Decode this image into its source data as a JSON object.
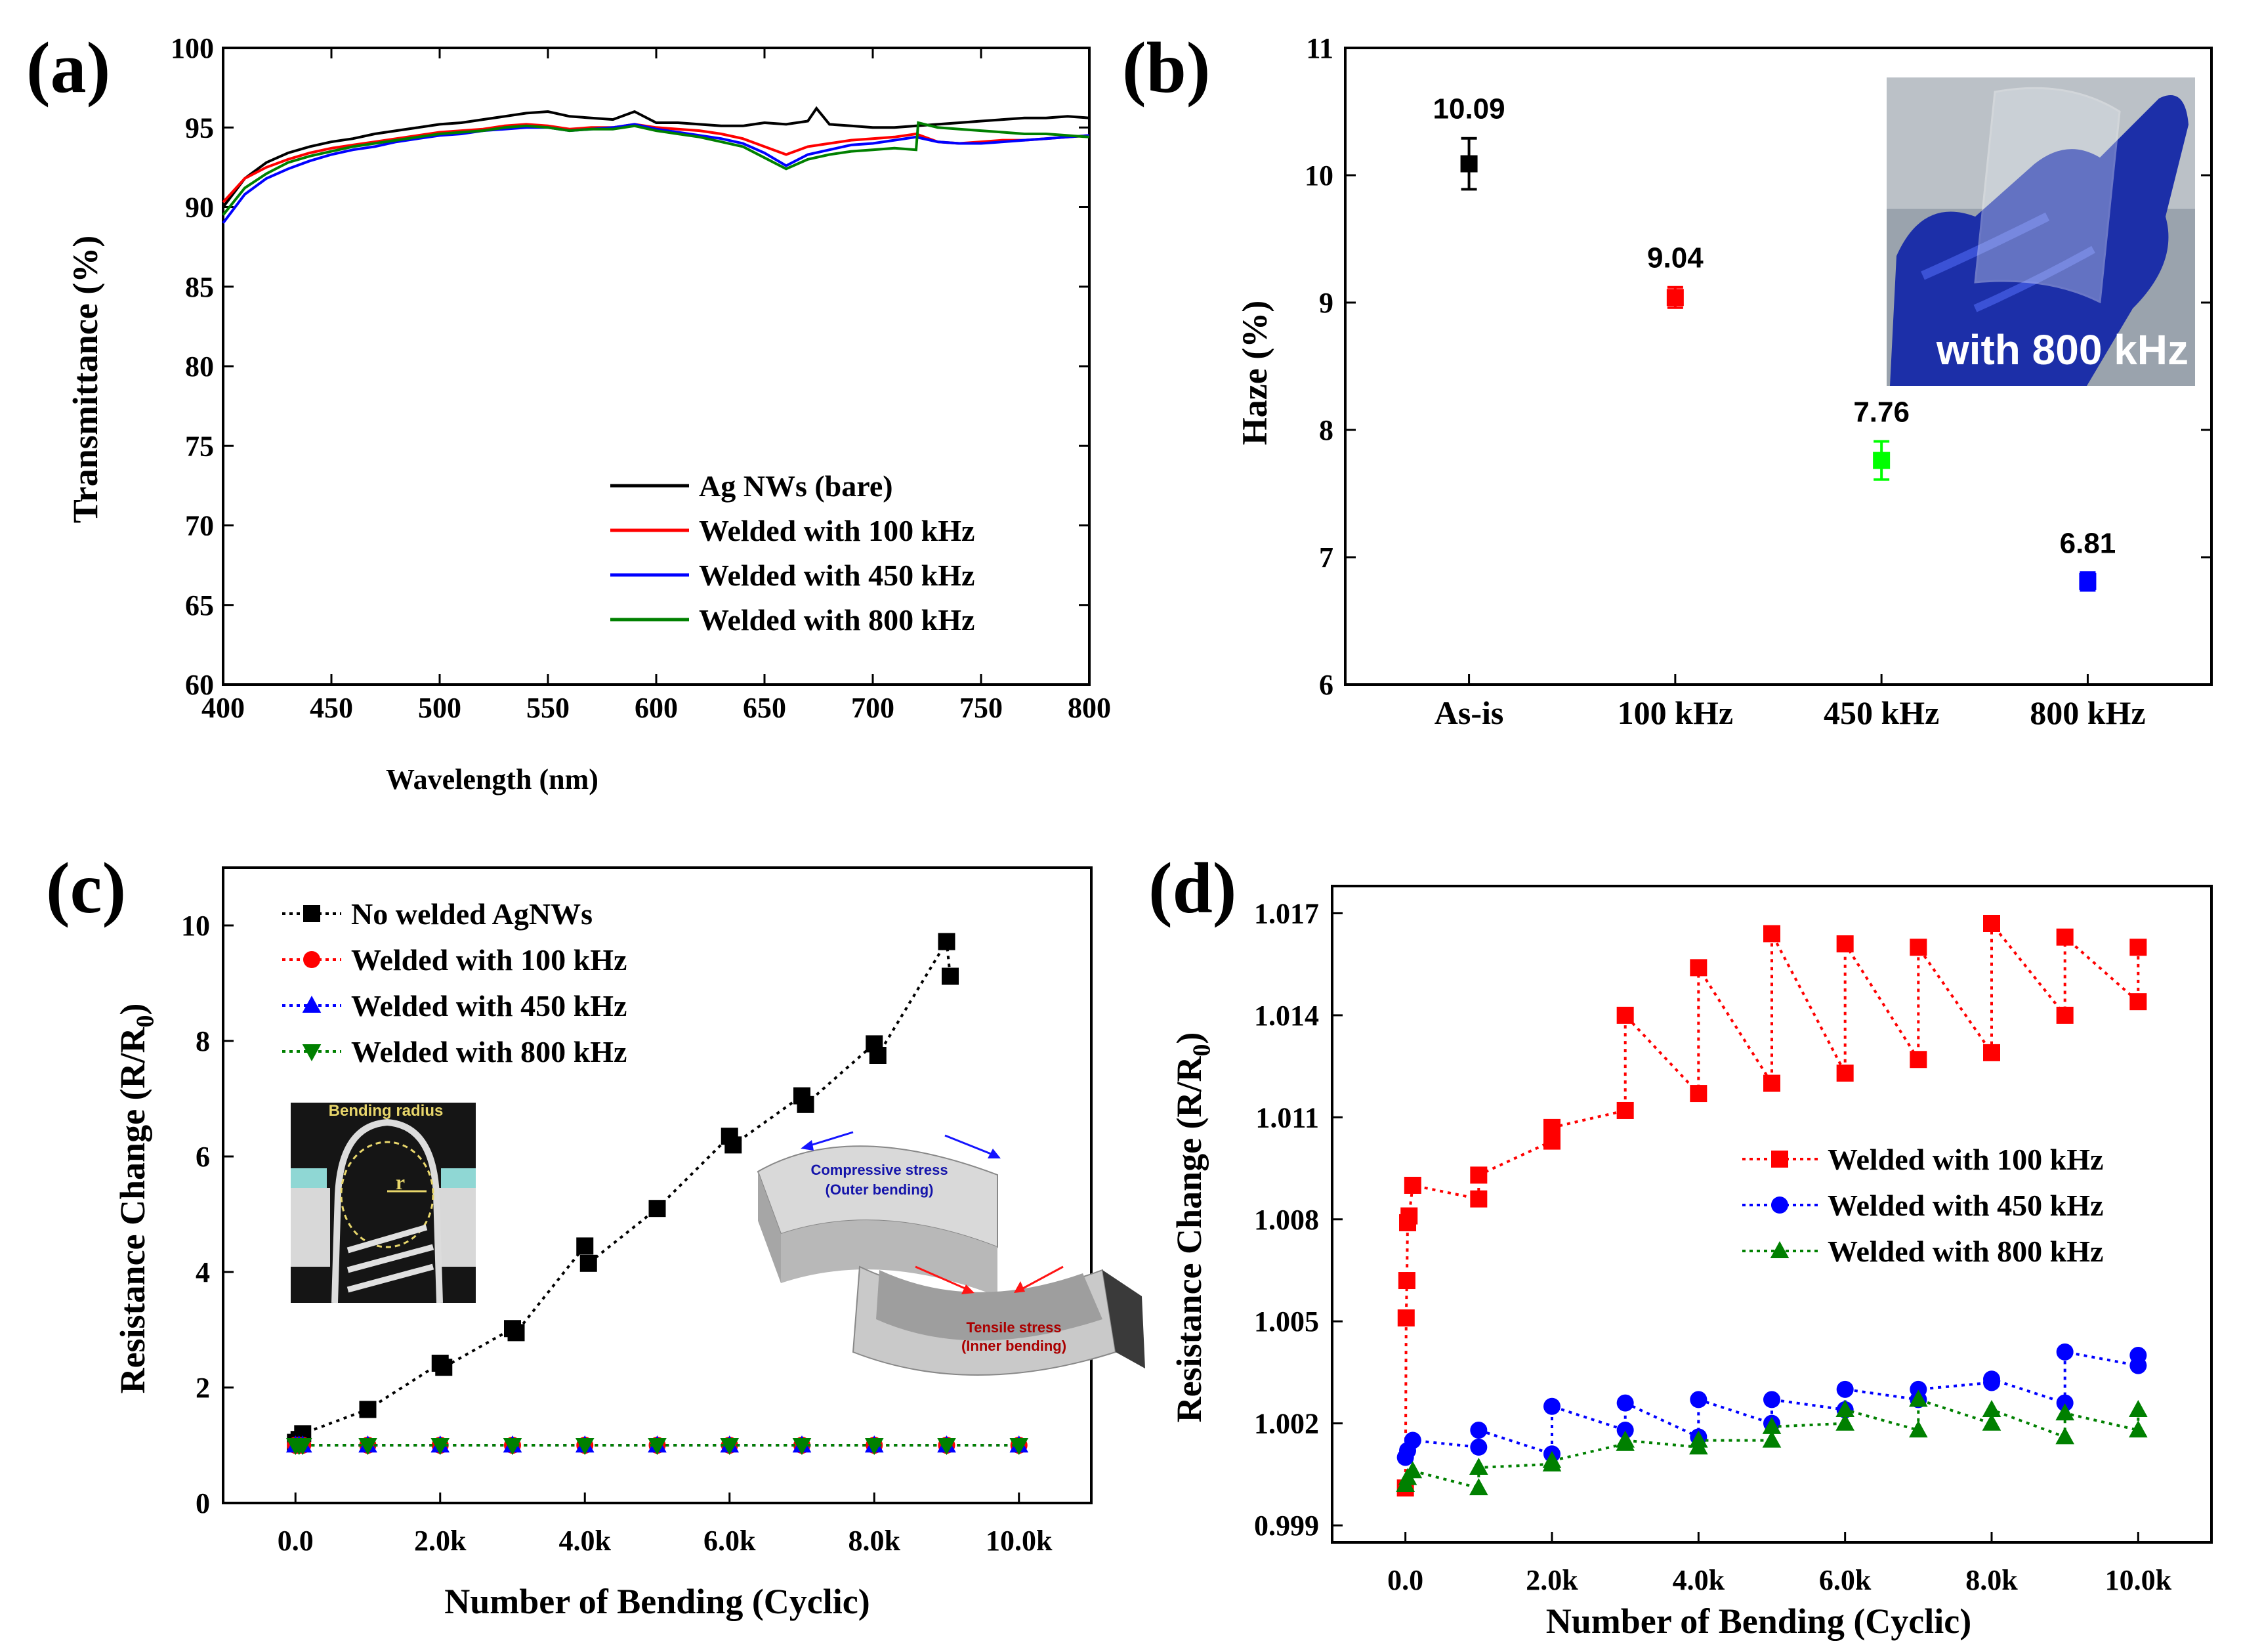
{
  "chart_data": [
    {
      "panel_label": "(a)",
      "type": "line",
      "xlabel": "Wavelength (nm)",
      "ylabel": "Transmittance (%)",
      "xlim": [
        400,
        800
      ],
      "ylim": [
        60,
        100
      ],
      "xticks": [
        400,
        450,
        500,
        550,
        600,
        650,
        700,
        750,
        800
      ],
      "yticks": [
        60,
        65,
        70,
        75,
        80,
        85,
        90,
        95,
        100
      ],
      "legend_position": "bottom-right",
      "series": [
        {
          "name": "Ag NWs (bare)",
          "color": "#000000",
          "x": [
            400,
            410,
            420,
            430,
            440,
            450,
            460,
            470,
            480,
            490,
            500,
            510,
            520,
            530,
            540,
            550,
            560,
            570,
            580,
            590,
            600,
            610,
            620,
            630,
            640,
            650,
            660,
            670,
            674,
            680,
            690,
            700,
            710,
            720,
            730,
            740,
            750,
            760,
            770,
            780,
            790,
            800
          ],
          "y": [
            90.0,
            91.8,
            92.8,
            93.4,
            93.8,
            94.1,
            94.3,
            94.6,
            94.8,
            95.0,
            95.2,
            95.3,
            95.5,
            95.7,
            95.9,
            96.0,
            95.7,
            95.6,
            95.5,
            96.0,
            95.3,
            95.3,
            95.2,
            95.1,
            95.1,
            95.3,
            95.2,
            95.4,
            96.2,
            95.2,
            95.1,
            95.0,
            95.0,
            95.1,
            95.2,
            95.3,
            95.4,
            95.5,
            95.6,
            95.6,
            95.7,
            95.6
          ]
        },
        {
          "name": "Welded with 100 kHz",
          "color": "#ff0000",
          "x": [
            400,
            410,
            420,
            430,
            440,
            450,
            460,
            470,
            480,
            490,
            500,
            510,
            520,
            530,
            540,
            550,
            560,
            570,
            580,
            590,
            600,
            610,
            620,
            630,
            640,
            650,
            660,
            670,
            680,
            690,
            700,
            710,
            720,
            730,
            740,
            750,
            760,
            770,
            780,
            790,
            800
          ],
          "y": [
            90.3,
            91.8,
            92.5,
            93.0,
            93.4,
            93.7,
            93.9,
            94.1,
            94.3,
            94.5,
            94.7,
            94.8,
            94.9,
            95.1,
            95.2,
            95.1,
            94.9,
            95.0,
            95.0,
            95.2,
            95.0,
            94.9,
            94.8,
            94.6,
            94.3,
            93.8,
            93.3,
            93.8,
            94.0,
            94.2,
            94.3,
            94.4,
            94.6,
            94.1,
            94.0,
            94.1,
            94.2,
            94.2,
            94.3,
            94.4,
            94.5
          ]
        },
        {
          "name": "Welded with 450 kHz",
          "color": "#0000ff",
          "x": [
            400,
            410,
            420,
            430,
            440,
            450,
            460,
            470,
            480,
            490,
            500,
            510,
            520,
            530,
            540,
            550,
            560,
            570,
            580,
            590,
            600,
            610,
            620,
            630,
            640,
            650,
            660,
            670,
            680,
            690,
            700,
            710,
            720,
            730,
            740,
            750,
            760,
            770,
            780,
            790,
            800
          ],
          "y": [
            89.0,
            90.8,
            91.8,
            92.4,
            92.9,
            93.3,
            93.6,
            93.8,
            94.1,
            94.3,
            94.5,
            94.6,
            94.8,
            94.9,
            95.0,
            95.0,
            94.8,
            94.9,
            95.0,
            95.2,
            94.9,
            94.7,
            94.5,
            94.3,
            94.0,
            93.4,
            92.6,
            93.3,
            93.6,
            93.9,
            94.0,
            94.2,
            94.4,
            94.1,
            94.0,
            94.0,
            94.1,
            94.2,
            94.3,
            94.4,
            94.5
          ]
        },
        {
          "name": "Welded with 800 kHz",
          "color": "#008000",
          "x": [
            400,
            410,
            420,
            430,
            440,
            450,
            460,
            470,
            480,
            490,
            500,
            510,
            520,
            530,
            540,
            550,
            560,
            570,
            580,
            590,
            600,
            610,
            620,
            630,
            640,
            650,
            660,
            670,
            680,
            690,
            700,
            710,
            720,
            721,
            730,
            740,
            750,
            760,
            770,
            780,
            790,
            800
          ],
          "y": [
            89.5,
            91.2,
            92.1,
            92.8,
            93.2,
            93.5,
            93.8,
            94.0,
            94.2,
            94.4,
            94.6,
            94.7,
            94.8,
            95.0,
            95.1,
            95.0,
            94.8,
            94.9,
            94.9,
            95.1,
            94.8,
            94.6,
            94.4,
            94.1,
            93.8,
            93.1,
            92.4,
            93.0,
            93.3,
            93.5,
            93.6,
            93.7,
            93.6,
            95.3,
            95.0,
            94.9,
            94.8,
            94.7,
            94.6,
            94.6,
            94.5,
            94.4
          ]
        }
      ]
    },
    {
      "panel_label": "(b)",
      "type": "scatter",
      "xlabel": "",
      "ylabel": "Haze (%)",
      "ylim": [
        6,
        11
      ],
      "yticks": [
        6,
        7,
        8,
        9,
        10,
        11
      ],
      "categories": [
        "As-is",
        "100 kHz",
        "450 kHz",
        "800 kHz"
      ],
      "values": [
        10.09,
        9.04,
        7.76,
        6.81
      ],
      "errors": [
        0.2,
        0.08,
        0.15,
        0.07
      ],
      "labels": [
        "10.09",
        "9.04",
        "7.76",
        "6.81"
      ],
      "colors": [
        "#000000",
        "#ff0000",
        "#00ff00",
        "#0000ff"
      ],
      "inset_caption": "with 800 kHz"
    },
    {
      "panel_label": "(c)",
      "type": "line",
      "xlabel": "Number of Bending (Cyclic)",
      "ylabel": "Resistance Change (R/R",
      "ylabel_sub": "0",
      "ylabel_end": ")",
      "xlim": [
        -1000,
        11000
      ],
      "ylim": [
        0,
        11
      ],
      "xticks": [
        0,
        2000,
        4000,
        6000,
        8000,
        10000
      ],
      "xtick_labels": [
        "0.0",
        "2.0k",
        "4.0k",
        "6.0k",
        "8.0k",
        "10.0k"
      ],
      "yticks": [
        0,
        2,
        4,
        6,
        8,
        10
      ],
      "legend_position": "top-left",
      "inset_photo_label": "Bending radius",
      "inset_radius_label": "r",
      "diagram_labels": [
        "Compressive stress",
        "(Outer bending)",
        "Tensile stress",
        "(Inner bending)"
      ],
      "series": [
        {
          "name": "No welded AgNWs",
          "color": "#000000",
          "marker": "square",
          "x": [
            0,
            50,
            100,
            1000,
            2000,
            2050,
            3000,
            3050,
            4000,
            4050,
            5000,
            6000,
            6050,
            7000,
            7050,
            8000,
            8050,
            9000,
            9050
          ],
          "y": [
            1.05,
            1.1,
            1.2,
            1.62,
            2.42,
            2.35,
            3.02,
            2.95,
            4.45,
            4.15,
            5.1,
            6.35,
            6.2,
            7.05,
            6.9,
            7.95,
            7.75,
            9.72,
            9.12
          ]
        },
        {
          "name": "Welded with 100 kHz",
          "color": "#ff0000",
          "marker": "circle",
          "x": [
            0,
            50,
            100,
            1000,
            2000,
            3000,
            4000,
            5000,
            6000,
            7000,
            8000,
            9000,
            10000
          ],
          "y": [
            1.0,
            1.0,
            1.0,
            1.0,
            1.0,
            1.0,
            1.0,
            1.0,
            1.0,
            1.0,
            1.0,
            1.0,
            1.0
          ]
        },
        {
          "name": "Welded with 450 kHz",
          "color": "#0000ff",
          "marker": "triangle-up",
          "x": [
            0,
            50,
            100,
            1000,
            2000,
            3000,
            4000,
            5000,
            6000,
            7000,
            8000,
            9000,
            10000
          ],
          "y": [
            1.0,
            1.0,
            1.0,
            1.0,
            1.0,
            1.0,
            1.0,
            1.0,
            1.0,
            1.0,
            1.0,
            1.0,
            1.0
          ]
        },
        {
          "name": "Welded with 800 kHz",
          "color": "#008000",
          "marker": "triangle-down",
          "x": [
            0,
            50,
            100,
            1000,
            2000,
            3000,
            4000,
            5000,
            6000,
            7000,
            8000,
            9000,
            10000
          ],
          "y": [
            1.0,
            1.0,
            1.0,
            1.0,
            1.0,
            1.0,
            1.0,
            1.0,
            1.0,
            1.0,
            1.0,
            1.0,
            1.0
          ]
        }
      ]
    },
    {
      "panel_label": "(d)",
      "type": "line",
      "xlabel": "Number of Bending (Cyclic)",
      "ylabel": "Resistance Change (R/R",
      "ylabel_sub": "0",
      "ylabel_end": ")",
      "xlim": [
        -1000,
        11000
      ],
      "ylim": [
        0.9985,
        1.0178
      ],
      "xticks": [
        0,
        2000,
        4000,
        6000,
        8000,
        10000
      ],
      "xtick_labels": [
        "0.0",
        "2.0k",
        "4.0k",
        "6.0k",
        "8.0k",
        "10.0k"
      ],
      "yticks": [
        0.999,
        1.002,
        1.005,
        1.008,
        1.011,
        1.014,
        1.017
      ],
      "ytick_labels": [
        "0.999",
        "1.002",
        "1.005",
        "1.008",
        "1.011",
        "1.014",
        "1.017"
      ],
      "legend_position": "center-right",
      "series": [
        {
          "name": "Welded with 100 kHz",
          "color": "#ff0000",
          "marker": "square",
          "x": [
            0,
            10,
            20,
            30,
            50,
            100,
            1000,
            1000,
            2000,
            2000,
            3000,
            3000,
            4000,
            4000,
            5000,
            5000,
            6000,
            6000,
            7000,
            7000,
            8000,
            8000,
            9000,
            9000,
            10000,
            10000
          ],
          "y": [
            1.0001,
            1.0051,
            1.0062,
            1.0079,
            1.0081,
            1.009,
            1.0086,
            1.0093,
            1.0103,
            1.0107,
            1.0112,
            1.014,
            1.0117,
            1.0154,
            1.012,
            1.0164,
            1.0123,
            1.0161,
            1.0127,
            1.016,
            1.0129,
            1.0167,
            1.014,
            1.0163,
            1.0144,
            1.016
          ]
        },
        {
          "name": "Welded with 450 kHz",
          "color": "#0000ff",
          "marker": "circle",
          "x": [
            0,
            30,
            100,
            1000,
            1000,
            2000,
            2000,
            3000,
            3000,
            4000,
            4000,
            5000,
            5000,
            6000,
            6000,
            7000,
            7000,
            8000,
            8000,
            9000,
            9000,
            10000,
            10000
          ],
          "y": [
            1.001,
            1.0012,
            1.0015,
            1.0013,
            1.0018,
            1.0011,
            1.0025,
            1.0018,
            1.0026,
            1.0016,
            1.0027,
            1.002,
            1.0027,
            1.0024,
            1.003,
            1.0027,
            1.003,
            1.0032,
            1.0033,
            1.0026,
            1.0041,
            1.0037,
            1.004
          ]
        },
        {
          "name": "Welded with 800 kHz",
          "color": "#008000",
          "marker": "triangle-up",
          "x": [
            0,
            30,
            100,
            1000,
            1000,
            2000,
            2000,
            3000,
            3000,
            4000,
            4000,
            5000,
            5000,
            6000,
            6000,
            7000,
            7000,
            8000,
            8000,
            9000,
            9000,
            10000,
            10000
          ],
          "y": [
            1.0002,
            1.0004,
            1.0006,
            1.0001,
            1.0007,
            1.0008,
            1.0009,
            1.0014,
            1.0015,
            1.0013,
            1.0015,
            1.0015,
            1.0019,
            1.002,
            1.0024,
            1.0018,
            1.0027,
            1.002,
            1.0024,
            1.0016,
            1.0023,
            1.0018,
            1.0024
          ]
        }
      ]
    }
  ]
}
